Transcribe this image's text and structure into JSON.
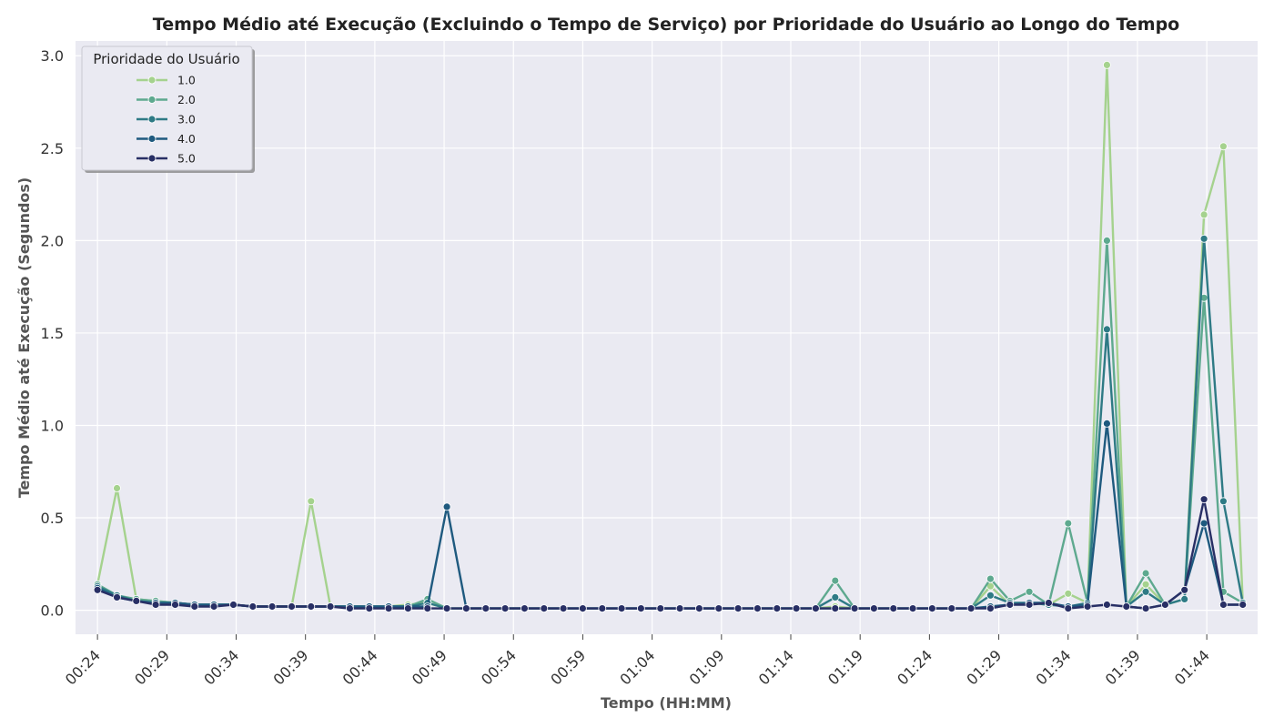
{
  "chart_data": {
    "type": "line",
    "title": "Tempo Médio até Execução (Excluindo o Tempo de Serviço) por Prioridade do Usuário ao Longo do Tempo",
    "xlabel": "Tempo (HH:MM)",
    "ylabel": "Tempo Médio até Execução (Segundos)",
    "ylim": [
      -0.13,
      3.08
    ],
    "xlim": [
      "00:22:25",
      "01:47:40"
    ],
    "x_tick_labels": [
      "00:24",
      "00:29",
      "00:34",
      "00:39",
      "00:44",
      "00:49",
      "00:54",
      "00:59",
      "01:04",
      "01:09",
      "01:14",
      "01:19",
      "01:24",
      "01:29",
      "01:34",
      "01:39",
      "01:44"
    ],
    "y_tick_labels": [
      "0.0",
      "0.5",
      "1.0",
      "1.5",
      "2.0",
      "2.5",
      "3.0"
    ],
    "y_ticks": [
      0,
      0.5,
      1.0,
      1.5,
      2.0,
      2.5,
      3.0
    ],
    "grid": true,
    "legend_title": "Prioridade do Usuário",
    "legend_position": "top-left",
    "x": [
      "00:24:00",
      "00:25:24",
      "00:26:48",
      "00:28:12",
      "00:29:36",
      "00:31:00",
      "00:32:24",
      "00:33:48",
      "00:35:12",
      "00:36:36",
      "00:38:00",
      "00:39:24",
      "00:40:48",
      "00:42:12",
      "00:43:36",
      "00:45:00",
      "00:46:24",
      "00:47:48",
      "00:49:12",
      "00:50:36",
      "00:52:00",
      "00:53:24",
      "00:54:48",
      "00:56:12",
      "00:57:36",
      "00:59:00",
      "01:00:24",
      "01:01:48",
      "01:03:12",
      "01:04:36",
      "01:06:00",
      "01:07:24",
      "01:08:48",
      "01:10:12",
      "01:11:36",
      "01:13:00",
      "01:14:24",
      "01:15:48",
      "01:17:12",
      "01:18:36",
      "01:20:00",
      "01:21:24",
      "01:22:48",
      "01:24:12",
      "01:25:36",
      "01:27:00",
      "01:28:24",
      "01:29:48",
      "01:31:12",
      "01:32:36",
      "01:34:00",
      "01:35:24",
      "01:36:48",
      "01:38:12",
      "01:39:36",
      "01:41:00",
      "01:42:24",
      "01:43:48",
      "01:45:12",
      "01:46:36"
    ],
    "series": [
      {
        "name": "1.0",
        "color": "#a5d28e",
        "values": [
          0.14,
          0.66,
          0.06,
          0.05,
          0.04,
          0.03,
          0.03,
          0.03,
          0.02,
          0.02,
          0.02,
          0.59,
          0.02,
          0.02,
          0.02,
          0.02,
          0.03,
          0.04,
          0.01,
          0.01,
          0.01,
          0.01,
          0.01,
          0.01,
          0.01,
          0.01,
          0.01,
          0.01,
          0.01,
          0.01,
          0.01,
          0.01,
          0.01,
          0.01,
          0.01,
          0.01,
          0.01,
          0.01,
          0.02,
          0.01,
          0.01,
          0.01,
          0.01,
          0.01,
          0.01,
          0.01,
          0.13,
          0.03,
          0.04,
          0.03,
          0.09,
          0.04,
          2.95,
          0.02,
          0.14,
          0.03,
          0.06,
          2.14,
          2.51,
          0.04
        ]
      },
      {
        "name": "2.0",
        "color": "#5ea98f",
        "values": [
          0.14,
          0.08,
          0.06,
          0.05,
          0.04,
          0.03,
          0.03,
          0.03,
          0.02,
          0.02,
          0.02,
          0.02,
          0.02,
          0.02,
          0.02,
          0.02,
          0.02,
          0.06,
          0.01,
          0.01,
          0.01,
          0.01,
          0.01,
          0.01,
          0.01,
          0.01,
          0.01,
          0.01,
          0.01,
          0.01,
          0.01,
          0.01,
          0.01,
          0.01,
          0.01,
          0.01,
          0.01,
          0.01,
          0.16,
          0.01,
          0.01,
          0.01,
          0.01,
          0.01,
          0.01,
          0.01,
          0.17,
          0.05,
          0.1,
          0.03,
          0.47,
          0.04,
          2.0,
          0.02,
          0.2,
          0.03,
          0.06,
          1.69,
          0.1,
          0.04
        ]
      },
      {
        "name": "3.0",
        "color": "#2e7a85",
        "values": [
          0.13,
          0.08,
          0.05,
          0.04,
          0.04,
          0.03,
          0.03,
          0.03,
          0.02,
          0.02,
          0.02,
          0.02,
          0.02,
          0.02,
          0.02,
          0.02,
          0.02,
          0.04,
          0.01,
          0.01,
          0.01,
          0.01,
          0.01,
          0.01,
          0.01,
          0.01,
          0.01,
          0.01,
          0.01,
          0.01,
          0.01,
          0.01,
          0.01,
          0.01,
          0.01,
          0.01,
          0.01,
          0.01,
          0.07,
          0.01,
          0.01,
          0.01,
          0.01,
          0.01,
          0.01,
          0.01,
          0.08,
          0.04,
          0.04,
          0.03,
          0.02,
          0.04,
          1.52,
          0.02,
          0.1,
          0.03,
          0.06,
          2.01,
          0.59,
          0.04
        ]
      },
      {
        "name": "4.0",
        "color": "#1f5a7f",
        "values": [
          0.12,
          0.07,
          0.05,
          0.04,
          0.04,
          0.03,
          0.03,
          0.03,
          0.02,
          0.02,
          0.02,
          0.02,
          0.02,
          0.02,
          0.02,
          0.02,
          0.02,
          0.02,
          0.56,
          0.01,
          0.01,
          0.01,
          0.01,
          0.01,
          0.01,
          0.01,
          0.01,
          0.01,
          0.01,
          0.01,
          0.01,
          0.01,
          0.01,
          0.01,
          0.01,
          0.01,
          0.01,
          0.01,
          0.01,
          0.01,
          0.01,
          0.01,
          0.01,
          0.01,
          0.01,
          0.01,
          0.02,
          0.03,
          0.04,
          0.04,
          0.02,
          0.03,
          1.01,
          0.02,
          0.01,
          0.03,
          0.11,
          0.47,
          0.03,
          0.03
        ]
      },
      {
        "name": "5.0",
        "color": "#282f65",
        "values": [
          0.11,
          0.07,
          0.05,
          0.03,
          0.03,
          0.02,
          0.02,
          0.03,
          0.02,
          0.02,
          0.02,
          0.02,
          0.02,
          0.01,
          0.01,
          0.01,
          0.01,
          0.01,
          0.01,
          0.01,
          0.01,
          0.01,
          0.01,
          0.01,
          0.01,
          0.01,
          0.01,
          0.01,
          0.01,
          0.01,
          0.01,
          0.01,
          0.01,
          0.01,
          0.01,
          0.01,
          0.01,
          0.01,
          0.01,
          0.01,
          0.01,
          0.01,
          0.01,
          0.01,
          0.01,
          0.01,
          0.01,
          0.03,
          0.03,
          0.04,
          0.01,
          0.02,
          0.03,
          0.02,
          0.01,
          0.03,
          0.11,
          0.6,
          0.03,
          0.03
        ]
      }
    ]
  }
}
